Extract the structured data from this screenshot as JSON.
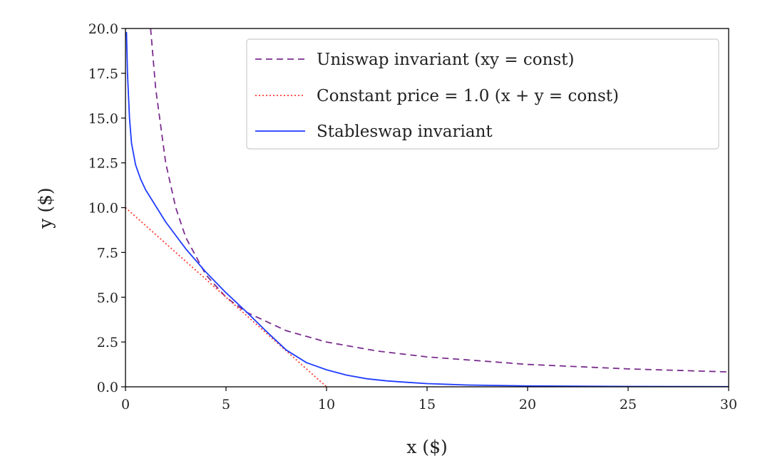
{
  "chart_data": {
    "type": "line",
    "xlabel": "x ($)",
    "ylabel": "y ($)",
    "xlim": [
      0,
      30
    ],
    "ylim": [
      0,
      20
    ],
    "xticks": [
      0,
      5,
      10,
      15,
      20,
      25,
      30
    ],
    "xtick_labels": [
      "0",
      "5",
      "10",
      "15",
      "20",
      "25",
      "30"
    ],
    "yticks": [
      0,
      2.5,
      5,
      7.5,
      10,
      12.5,
      15,
      17.5,
      20
    ],
    "ytick_labels": [
      "0.0",
      "2.5",
      "5.0",
      "7.5",
      "10.0",
      "12.5",
      "15.0",
      "17.5",
      "20.0"
    ],
    "grid": false,
    "legend_position": "top-right",
    "series": [
      {
        "name": "Uniswap invariant (xy = const)",
        "style": "dashed",
        "color": "#7b2d8e",
        "x": [
          1.25,
          1.5,
          2,
          2.5,
          3,
          4,
          5,
          6,
          8,
          10,
          12.5,
          15,
          20,
          25,
          30
        ],
        "y": [
          20,
          16.67,
          12.5,
          10,
          8.33,
          6.25,
          5,
          4.17,
          3.13,
          2.5,
          2,
          1.67,
          1.25,
          1,
          0.83
        ]
      },
      {
        "name": "Constant price = 1.0 (x + y = const)",
        "style": "dotted",
        "color": "#ff3b30",
        "x": [
          0,
          10
        ],
        "y": [
          10,
          0
        ]
      },
      {
        "name": "Stableswap invariant",
        "style": "solid",
        "color": "#1f3cff",
        "x": [
          0.05,
          0.1,
          0.2,
          0.3,
          0.5,
          0.75,
          1,
          1.5,
          2,
          3,
          4,
          5,
          6,
          7,
          8,
          9,
          10,
          11,
          12,
          13,
          14,
          15,
          17,
          20,
          25,
          30
        ],
        "y": [
          19.8,
          17.5,
          15,
          13.6,
          12.4,
          11.6,
          11,
          10.1,
          9.2,
          7.7,
          6.4,
          5.25,
          4.2,
          3.1,
          2.05,
          1.35,
          0.95,
          0.65,
          0.45,
          0.33,
          0.25,
          0.18,
          0.1,
          0.05,
          0.02,
          0.01
        ]
      }
    ]
  }
}
